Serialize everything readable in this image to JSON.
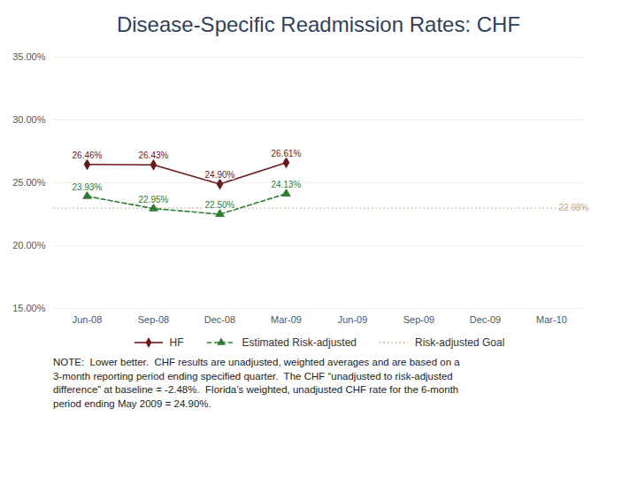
{
  "chart_data": {
    "type": "line",
    "title": "Disease-Specific Readmission Rates:  CHF",
    "categories": [
      "Jun-08",
      "Sep-08",
      "Dec-08",
      "Mar-09",
      "Jun-09",
      "Sep-09",
      "Dec-09",
      "Mar-10"
    ],
    "series": [
      {
        "name": "HF",
        "type": "line",
        "color": "#6B1A1A",
        "marker": "diamond",
        "line_style": "solid",
        "values": [
          26.46,
          26.43,
          24.9,
          26.61,
          null,
          null,
          null,
          null
        ],
        "value_labels": [
          "26.46%",
          "26.43%",
          "24.90%",
          "26.61%",
          null,
          null,
          null,
          null
        ]
      },
      {
        "name": "Estimated Risk-adjusted",
        "type": "line",
        "color": "#2E7D32",
        "marker": "triangle",
        "line_style": "dashed",
        "values": [
          23.93,
          22.95,
          22.5,
          24.13,
          null,
          null,
          null,
          null
        ],
        "value_labels": [
          "23.93%",
          "22.95%",
          "22.50%",
          "24.13%",
          null,
          null,
          null,
          null
        ]
      },
      {
        "name": "Risk-adjusted Goal",
        "type": "rule",
        "color": "#C8A882",
        "line_style": "dotted",
        "value": 22.98,
        "value_label": "22.98%"
      }
    ],
    "ylim": [
      15.0,
      35.0
    ],
    "yticks": [
      {
        "value": 15.0,
        "label": "15.00%"
      },
      {
        "value": 20.0,
        "label": "20.00%"
      },
      {
        "value": 25.0,
        "label": "25.00%"
      },
      {
        "value": 30.0,
        "label": "30.00%"
      },
      {
        "value": 35.0,
        "label": "35.00%"
      }
    ],
    "grid": true,
    "legend": "bottom",
    "data_labels": true,
    "note": "NOTE:  Lower better.  CHF results are unadjusted, weighted averages and are based on a\n3-month reporting period ending specified quarter.  The CHF “unadjusted to risk-adjusted\ndifference” at baseline = -2.48%.  Florida’s weighted, unadjusted CHF rate for the 6-month\nperiod ending May 2009 = 24.90%."
  }
}
